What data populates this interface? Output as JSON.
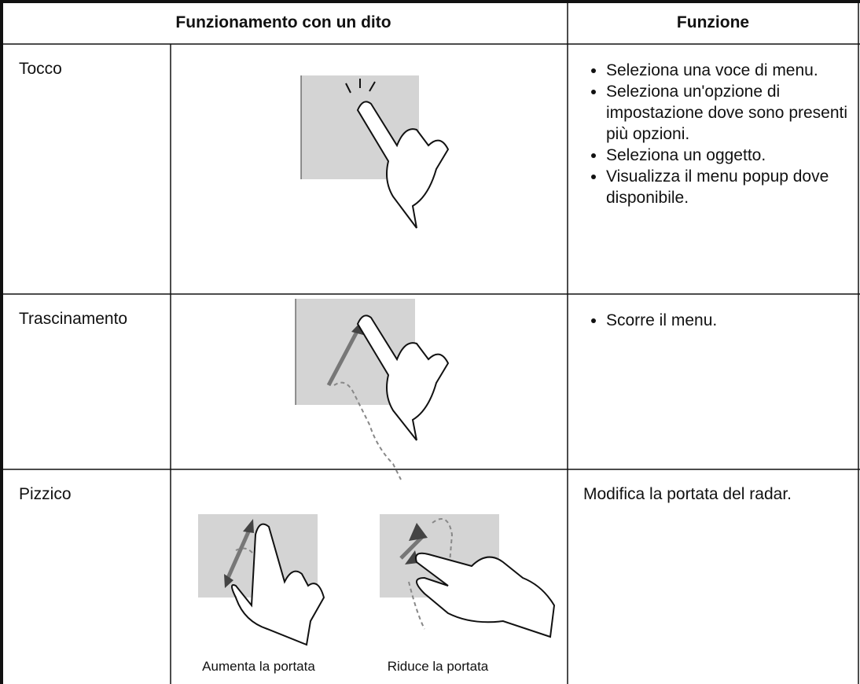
{
  "table": {
    "header": [
      "Funzionamento con un dito",
      "Funzione"
    ],
    "rows": [
      {
        "gesture": "Tocco",
        "functions": [
          "Seleziona una voce di menu.",
          "Seleziona un'opzione di impostazione dove sono presenti più opzioni.",
          "Seleziona un oggetto.",
          "Visualizza il menu popup dove disponibile."
        ]
      },
      {
        "gesture": "Trascinamento",
        "functions": [
          "Scorre il menu."
        ]
      },
      {
        "gesture": "Pizzico",
        "function_text": "Modifica la portata del radar.",
        "captions": [
          "Aumenta la portata",
          "Riduce la portata"
        ]
      }
    ]
  }
}
